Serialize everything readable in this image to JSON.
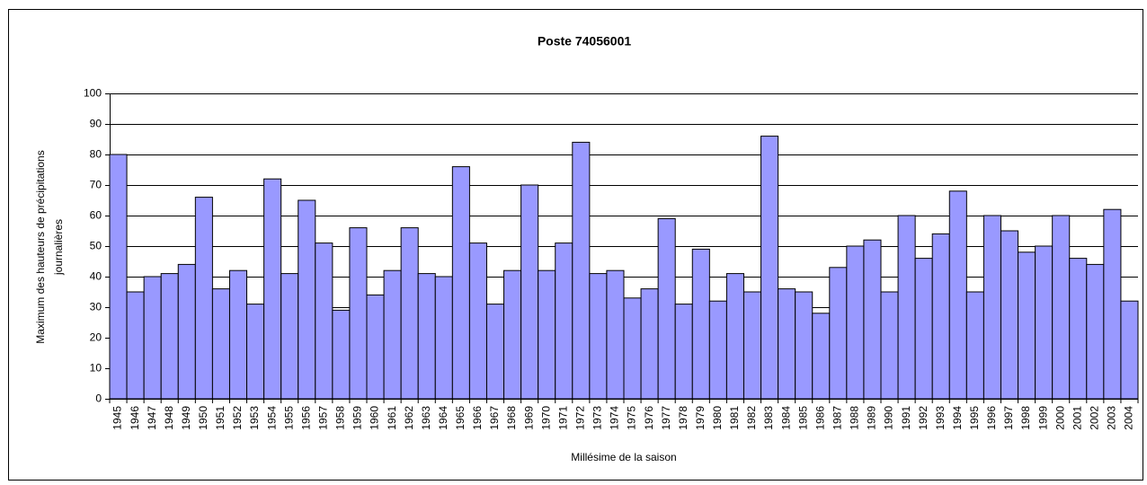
{
  "chart_data": {
    "type": "bar",
    "title": "Poste 74056001",
    "y_label": [
      "Maximum des hauteurs de précipitations",
      "journalières"
    ],
    "x_label": "Millésime de la saison",
    "categories": [
      "1945",
      "1946",
      "1947",
      "1948",
      "1949",
      "1950",
      "1951",
      "1952",
      "1953",
      "1954",
      "1955",
      "1956",
      "1957",
      "1958",
      "1959",
      "1960",
      "1961",
      "1962",
      "1963",
      "1964",
      "1965",
      "1966",
      "1967",
      "1968",
      "1969",
      "1970",
      "1971",
      "1972",
      "1973",
      "1974",
      "1975",
      "1976",
      "1977",
      "1978",
      "1979",
      "1980",
      "1981",
      "1982",
      "1983",
      "1984",
      "1985",
      "1986",
      "1987",
      "1988",
      "1989",
      "1990",
      "1991",
      "1992",
      "1993",
      "1994",
      "1995",
      "1996",
      "1997",
      "1998",
      "1999",
      "2000",
      "2001",
      "2002",
      "2003",
      "2004"
    ],
    "values": [
      80,
      35,
      40,
      41,
      44,
      66,
      36,
      42,
      31,
      72,
      41,
      65,
      51,
      29,
      56,
      34,
      42,
      56,
      41,
      40,
      76,
      51,
      31,
      42,
      70,
      42,
      51,
      84,
      41,
      42,
      33,
      36,
      59,
      31,
      49,
      32,
      41,
      35,
      86,
      36,
      35,
      28,
      43,
      50,
      52,
      35,
      60,
      46,
      54,
      68,
      35,
      60,
      55,
      48,
      50,
      60,
      46,
      44,
      62,
      32
    ],
    "color": "#9999ff",
    "ylim": [
      0,
      100
    ],
    "yticks": [
      0,
      10,
      20,
      30,
      40,
      50,
      60,
      70,
      80,
      90,
      100
    ],
    "grid": true
  }
}
